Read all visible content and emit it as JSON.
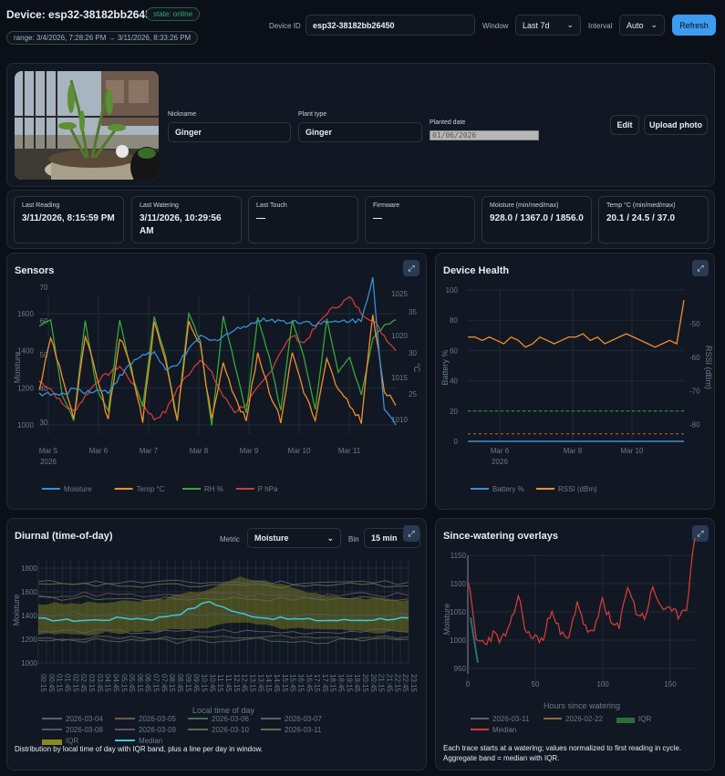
{
  "header": {
    "device_title": "Device: esp32-38182bb26450",
    "status": "state: online",
    "range": "range: 3/4/2026, 7:28:26 PM → 3/11/2026, 8:33:26 PM",
    "device_id_label": "Device ID",
    "device_id_value": "esp32-38182bb26450",
    "window_label": "Window",
    "window_value": "Last 7d",
    "interval_label": "Interval",
    "interval_value": "Auto",
    "refresh_label": "Refresh"
  },
  "plant": {
    "nickname_label": "Nickname",
    "nickname_value": "Ginger",
    "type_label": "Plant type",
    "type_value": "Ginger",
    "planted_label": "Planted date",
    "planted_value": "01/06/2026",
    "edit_label": "Edit",
    "upload_label": "Upload photo"
  },
  "stats": [
    {
      "label": "Last Reading",
      "value": "3/11/2026, 8:15:59 PM"
    },
    {
      "label": "Last Watering",
      "value": "3/11/2026, 10:29:56 AM"
    },
    {
      "label": "Last Touch",
      "value": "—"
    },
    {
      "label": "Firmware",
      "value": "—"
    },
    {
      "label": "Moisture (min/med/max)",
      "value": "928.0 / 1367.0 / 1856.0"
    },
    {
      "label": "Temp °C (min/med/max)",
      "value": "20.1 / 24.5 / 37.0"
    }
  ],
  "icons": {
    "expand": "expand-icon",
    "chevron": "chevron-down-icon"
  },
  "colors": {
    "moisture": "#3a8fd4",
    "temp": "#f28e2b",
    "rh": "#3aa53a",
    "phpa": "#d23a3a",
    "battery_ref": "#3aa53a",
    "median": "#3cc8e0",
    "iqr": "#8a8a1e",
    "accent": "#3d9cf0"
  },
  "chart_data": [
    {
      "type": "line",
      "title": "Sensors",
      "x_ticks": [
        "Mar 5",
        "Mar 6",
        "Mar 7",
        "Mar 8",
        "Mar 9",
        "Mar 10",
        "Mar 11"
      ],
      "x_year": "2026",
      "y_left_ticks": [
        "1000",
        "1200",
        "1400",
        "1600"
      ],
      "y_left2_ticks": [
        "30",
        "40",
        "50",
        "60",
        "70"
      ],
      "y_right_ticks": [
        "1010",
        "1015",
        "1020",
        "1025"
      ],
      "y_right2_ticks": [
        "25",
        "30",
        "35"
      ],
      "ylabel": "Moisture",
      "y2label": "°C",
      "legend_placement": "bottom",
      "series": [
        {
          "name": "Moisture",
          "key": "moisture",
          "values": [
            1170,
            1165,
            1160,
            1200,
            1180,
            1185,
            1180,
            1260,
            1330,
            1380,
            1390,
            1290,
            1330,
            1400,
            1480,
            1450,
            1480,
            1510,
            1540,
            1560,
            1570,
            1560,
            1555,
            1560,
            1545,
            1550,
            1555,
            1565,
            1560,
            1800,
            1080,
            1000
          ]
        },
        {
          "name": "Temp °C",
          "key": "temp",
          "values": [
            26,
            33,
            28,
            22,
            33,
            28,
            22,
            33,
            29,
            22,
            35,
            30,
            22,
            35,
            32,
            22,
            30,
            25,
            22,
            31,
            26,
            22,
            31,
            26,
            22,
            30,
            26,
            24,
            22,
            36,
            26,
            24
          ]
        },
        {
          "name": "RH %",
          "key": "rh",
          "values": [
            60,
            62,
            38,
            30,
            62,
            40,
            33,
            62,
            45,
            34,
            63,
            50,
            30,
            64,
            55,
            28,
            63,
            48,
            32,
            63,
            50,
            33,
            62,
            50,
            33,
            62,
            45,
            50,
            38,
            56,
            60,
            62
          ]
        },
        {
          "name": "P hPa",
          "key": "phpa",
          "values": [
            1015,
            1014,
            1012,
            1011,
            1013,
            1015,
            1016,
            1017,
            1015,
            1012,
            1010,
            1011,
            1014,
            1016,
            1018,
            1016,
            1013,
            1011,
            1012,
            1014,
            1016,
            1019,
            1021,
            1020,
            1022,
            1024,
            1025,
            1026,
            1024,
            1023,
            1021,
            1019
          ]
        }
      ]
    },
    {
      "type": "line",
      "title": "Device Health",
      "x_ticks": [
        "Mar 6",
        "Mar 8",
        "Mar 10"
      ],
      "x_year": "2026",
      "y_left_ticks": [
        "0",
        "20",
        "40",
        "60",
        "80",
        "100"
      ],
      "y_right_ticks": [
        "-80",
        "-70",
        "-60",
        "-50"
      ],
      "ylabel": "Battery %",
      "y2label": "RSSI (dBm)",
      "legend_placement": "bottom",
      "series": [
        {
          "name": "Battery %",
          "key": "battery",
          "values": [
            0,
            0
          ]
        },
        {
          "name": "RSSI (dBm)",
          "key": "rssi",
          "values": [
            -54,
            -54,
            -55,
            -54,
            -55,
            -56,
            -54,
            -55,
            -57,
            -56,
            -54,
            -55,
            -56,
            -55,
            -54,
            -54,
            -53,
            -55,
            -54,
            -56,
            -55,
            -54,
            -53,
            -54,
            -55,
            -56,
            -57,
            -56,
            -55,
            -56,
            -43
          ]
        },
        {
          "name": "ref",
          "key": "ref_20",
          "values": [
            20,
            20
          ]
        },
        {
          "name": "ref",
          "key": "ref_5",
          "values": [
            5,
            5
          ]
        }
      ]
    },
    {
      "type": "line",
      "title": "Diurnal (time-of-day)",
      "metric_label": "Metric",
      "metric_value": "Moisture",
      "bin_label": "Bin",
      "bin_value": "15 min",
      "xlabel": "Local time of day",
      "ylabel": "Moisture",
      "y_ticks": [
        "1000",
        "1200",
        "1400",
        "1600",
        "1800"
      ],
      "x_ticks": [
        "00:15",
        "00:45",
        "01:15",
        "01:45",
        "02:15",
        "02:45",
        "03:15",
        "03:45",
        "04:15",
        "04:45",
        "05:15",
        "05:45",
        "06:15",
        "06:45",
        "07:15",
        "07:45",
        "08:15",
        "08:45",
        "09:15",
        "09:45",
        "10:15",
        "10:45",
        "11:15",
        "11:45",
        "12:15",
        "12:45",
        "13:15",
        "13:45",
        "14:15",
        "14:45",
        "15:15",
        "15:45",
        "16:15",
        "16:45",
        "17:15",
        "17:45",
        "18:15",
        "18:45",
        "19:15",
        "19:45",
        "20:15",
        "20:45",
        "21:15",
        "21:45",
        "22:15",
        "22:45",
        "23:15"
      ],
      "legend_placement": "bottom",
      "series": [
        {
          "name": "2026-03-04",
          "values": [
            1680,
            1680,
            1680
          ]
        },
        {
          "name": "2026-03-05",
          "values": [
            1200,
            1210,
            1220
          ]
        },
        {
          "name": "2026-03-06",
          "values": [
            1180,
            1190,
            1200
          ]
        },
        {
          "name": "2026-03-07",
          "values": [
            1260,
            1270,
            1260
          ]
        },
        {
          "name": "2026-03-08",
          "values": [
            1400,
            1420,
            1410
          ]
        },
        {
          "name": "2026-03-09",
          "values": [
            1560,
            1580,
            1570
          ]
        },
        {
          "name": "2026-03-10",
          "values": [
            1540,
            1550,
            1540
          ]
        },
        {
          "name": "2026-03-11",
          "values": [
            1650,
            1660,
            1650
          ]
        },
        {
          "name": "IQR",
          "values_low": [
            1240,
            1240,
            1250,
            1260,
            1280,
            1300,
            1340,
            1300,
            1280,
            1270,
            1260,
            1260
          ],
          "values_high": [
            1500,
            1500,
            1510,
            1520,
            1560,
            1620,
            1720,
            1680,
            1600,
            1560,
            1540,
            1530
          ]
        },
        {
          "name": "Median",
          "values": [
            1370,
            1360,
            1360,
            1380,
            1370,
            1420,
            1520,
            1420,
            1380,
            1370,
            1360,
            1360,
            1370,
            1380
          ]
        }
      ],
      "note": "Distribution by local time of day with IQR band, plus a line per day in window."
    },
    {
      "type": "line",
      "title": "Since-watering overlays",
      "xlabel": "Hours since watering",
      "ylabel": "Moisture",
      "x_ticks": [
        "0",
        "50",
        "100",
        "150"
      ],
      "y_ticks": [
        "950",
        "1000",
        "1050",
        "1100",
        "1150"
      ],
      "legend_placement": "bottom",
      "series": [
        {
          "name": "2026-03-11",
          "values": [
            1040,
            960
          ]
        },
        {
          "name": "2026-02-22",
          "values": [
            1000,
            1000
          ]
        },
        {
          "name": "IQR",
          "values": [
            1000,
            1000
          ]
        },
        {
          "name": "Median",
          "values": [
            1110,
            1000,
            995,
            1010,
            1000,
            1020,
            1080,
            1010,
            1005,
            1000,
            1060,
            1010,
            1000,
            1070,
            1020,
            1010,
            1075,
            1030,
            1020,
            1100,
            1050,
            1040,
            1090,
            1060,
            1050,
            1045,
            1060,
            1180
          ]
        }
      ],
      "note": "Each trace starts at a watering; values normalized to first reading in cycle. Aggregate band = median with IQR."
    }
  ]
}
